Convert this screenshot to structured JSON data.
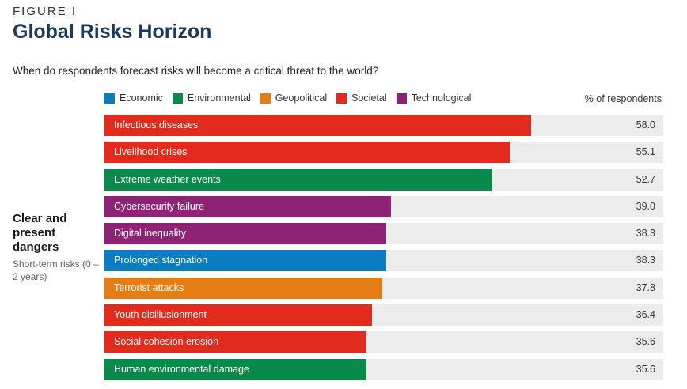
{
  "figure_label": "FIGURE I",
  "title": "Global Risks Horizon",
  "subtitle": "When do respondents forecast risks will become a critical threat to the world?",
  "unit_label": "% of respondents",
  "side": {
    "title": "Clear and present dangers",
    "subtitle": "Short-term risks (0 – 2 years)"
  },
  "colors": {
    "Economic": "#0a7cc1",
    "Environmental": "#0a8a4a",
    "Geopolitical": "#e57d14",
    "Societal": "#e22b1c",
    "Technological": "#8e2376",
    "track": "#ececec"
  },
  "chart_data": {
    "type": "bar",
    "orientation": "horizontal",
    "xlim": [
      0,
      76
    ],
    "legend": [
      "Economic",
      "Environmental",
      "Geopolitical",
      "Societal",
      "Technological"
    ],
    "categories": [
      "Infectious diseases",
      "Livelihood crises",
      "Extreme weather events",
      "Cybersecurity failure",
      "Digital inequality",
      "Prolonged stagnation",
      "Terrorist attacks",
      "Youth disillusionment",
      "Social cohesion erosion",
      "Human environmental damage"
    ],
    "values": [
      58.0,
      55.1,
      52.7,
      39.0,
      38.3,
      38.3,
      37.8,
      36.4,
      35.6,
      35.6
    ],
    "value_labels": [
      "58.0",
      "55.1",
      "52.7",
      "39.0",
      "38.3",
      "38.3",
      "37.8",
      "36.4",
      "35.6",
      "35.6"
    ],
    "groups": [
      "Societal",
      "Societal",
      "Environmental",
      "Technological",
      "Technological",
      "Economic",
      "Geopolitical",
      "Societal",
      "Societal",
      "Environmental"
    ]
  }
}
